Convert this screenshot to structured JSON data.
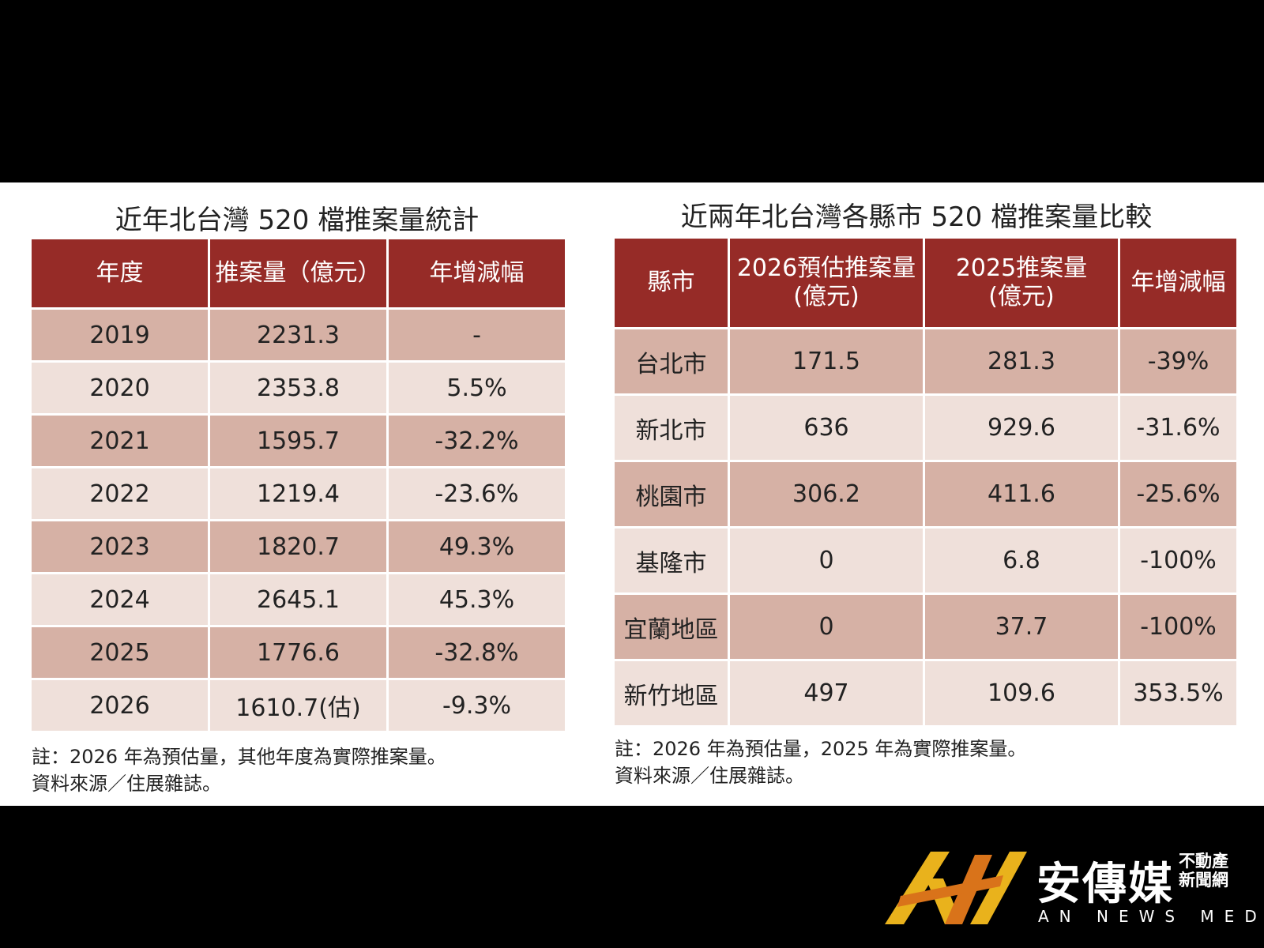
{
  "left": {
    "title": "近年北台灣 520 檔推案量統計",
    "headers": [
      "年度",
      "推案量（億元）",
      "年增減幅"
    ],
    "rows": [
      [
        "2019",
        "2231.3",
        "-"
      ],
      [
        "2020",
        "2353.8",
        "5.5%"
      ],
      [
        "2021",
        "1595.7",
        "-32.2%"
      ],
      [
        "2022",
        "1219.4",
        "-23.6%"
      ],
      [
        "2023",
        "1820.7",
        "49.3%"
      ],
      [
        "2024",
        "2645.1",
        "45.3%"
      ],
      [
        "2025",
        "1776.6",
        "-32.8%"
      ],
      [
        "2026",
        "1610.7(估)",
        "-9.3%"
      ]
    ],
    "note1": "註：2026 年為預估量，其他年度為實際推案量。",
    "note2": "資料來源／住展雜誌。"
  },
  "right": {
    "title": "近兩年北台灣各縣市 520 檔推案量比較",
    "headers": [
      {
        "line1": "縣市",
        "line2": ""
      },
      {
        "line1": "2026預估推案量",
        "line2": "(億元)"
      },
      {
        "line1": "2025推案量",
        "line2": "(億元)"
      },
      {
        "line1": "年增減幅",
        "line2": ""
      }
    ],
    "rows": [
      [
        "台北市",
        "171.5",
        "281.3",
        "-39%"
      ],
      [
        "新北市",
        "636",
        "929.6",
        "-31.6%"
      ],
      [
        "桃園市",
        "306.2",
        "411.6",
        "-25.6%"
      ],
      [
        "基隆市",
        "0",
        "6.8",
        "-100%"
      ],
      [
        "宜蘭地區",
        "0",
        "37.7",
        "-100%"
      ],
      [
        "新竹地區",
        "497",
        "109.6",
        "353.5%"
      ]
    ],
    "note1": "註：2026 年為預估量，2025 年為實際推案量。",
    "note2": "資料來源／住展雜誌。"
  },
  "logo": {
    "name": "安傳媒",
    "sub": "不動產新聞網",
    "en": "AN NEWS MEDIA",
    "colors": {
      "gold": "#e9b21c",
      "orange": "#d9731a",
      "header": "#962b27"
    }
  }
}
